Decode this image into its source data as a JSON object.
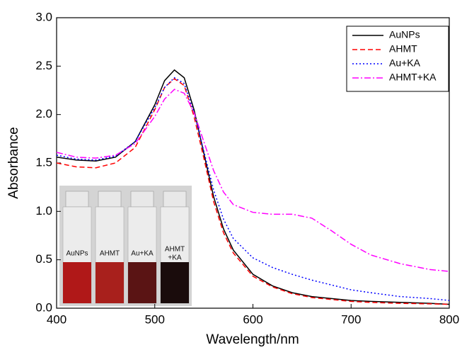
{
  "chart_data": {
    "type": "line",
    "x_label": "Wavelength/nm",
    "y_label": "Absorbance",
    "x": [
      400,
      420,
      440,
      460,
      480,
      500,
      510,
      520,
      530,
      540,
      550,
      560,
      570,
      580,
      600,
      620,
      640,
      660,
      680,
      700,
      720,
      750,
      780,
      800
    ],
    "series": [
      {
        "name": "AuNPs",
        "color": "#000000",
        "style": "solid",
        "values": [
          1.56,
          1.53,
          1.52,
          1.56,
          1.72,
          2.1,
          2.35,
          2.46,
          2.38,
          2.05,
          1.6,
          1.15,
          0.82,
          0.6,
          0.35,
          0.23,
          0.16,
          0.12,
          0.1,
          0.08,
          0.07,
          0.06,
          0.05,
          0.04
        ]
      },
      {
        "name": "AHMT",
        "color": "#ff0000",
        "style": "dashed",
        "values": [
          1.5,
          1.46,
          1.45,
          1.5,
          1.66,
          2.05,
          2.28,
          2.37,
          2.3,
          1.98,
          1.55,
          1.1,
          0.78,
          0.57,
          0.33,
          0.22,
          0.15,
          0.11,
          0.09,
          0.07,
          0.06,
          0.05,
          0.045,
          0.04
        ]
      },
      {
        "name": "Au+KA",
        "color": "#0000ff",
        "style": "dotted",
        "values": [
          1.58,
          1.54,
          1.53,
          1.57,
          1.72,
          2.07,
          2.28,
          2.38,
          2.32,
          2.02,
          1.62,
          1.22,
          0.92,
          0.72,
          0.52,
          0.42,
          0.35,
          0.29,
          0.24,
          0.19,
          0.16,
          0.12,
          0.1,
          0.08
        ]
      },
      {
        "name": "AHMT+KA",
        "color": "#ff00ff",
        "style": "dashdot",
        "values": [
          1.61,
          1.56,
          1.55,
          1.58,
          1.7,
          1.98,
          2.16,
          2.26,
          2.22,
          2.02,
          1.72,
          1.42,
          1.2,
          1.07,
          0.99,
          0.97,
          0.97,
          0.93,
          0.8,
          0.66,
          0.55,
          0.46,
          0.4,
          0.38
        ]
      }
    ],
    "xlim": [
      400,
      800
    ],
    "xticks": [
      400,
      500,
      600,
      700,
      800
    ],
    "ylim": [
      0,
      3
    ],
    "yticks": [
      {
        "value": 0,
        "label": "0.0"
      },
      {
        "value": 0.5,
        "label": "0.5"
      },
      {
        "value": 1,
        "label": "1.0"
      },
      {
        "value": 1.5,
        "label": "1.5"
      },
      {
        "value": 2,
        "label": "2.0"
      },
      {
        "value": 2.5,
        "label": "2.5"
      },
      {
        "value": 3,
        "label": "3.0"
      }
    ],
    "legend": "upper right",
    "inset": {
      "labels": [
        [
          "AuNPs"
        ],
        [
          "AHMT"
        ],
        [
          "Au+KA"
        ],
        [
          "AHMT",
          "+KA"
        ]
      ]
    }
  }
}
